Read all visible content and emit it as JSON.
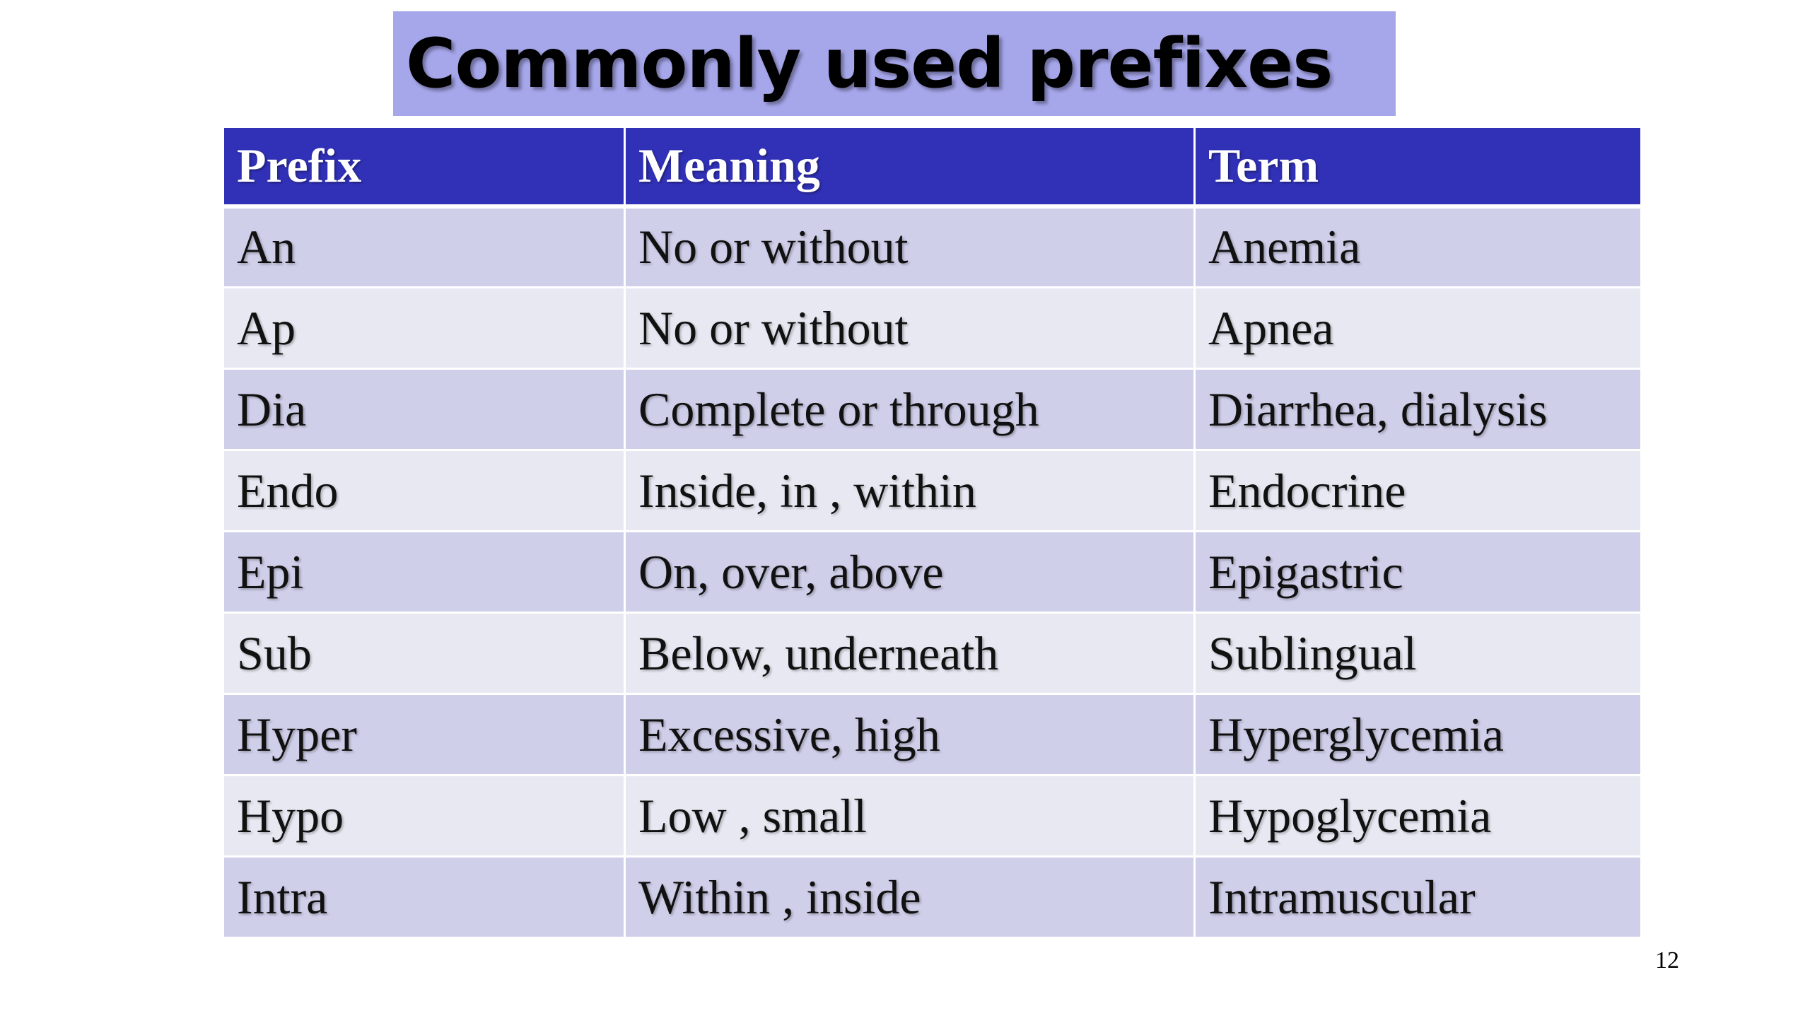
{
  "slide": {
    "title": "Commonly used prefixes",
    "page_number": "12"
  },
  "table": {
    "headers": [
      "Prefix",
      "Meaning",
      "Term"
    ],
    "rows": [
      [
        "An",
        "No or without",
        "Anemia"
      ],
      [
        "Ap",
        "No or without",
        "Apnea"
      ],
      [
        "Dia",
        "Complete or through",
        "Diarrhea, dialysis"
      ],
      [
        "Endo",
        "Inside, in , within",
        "Endocrine"
      ],
      [
        "Epi",
        "On, over, above",
        "Epigastric"
      ],
      [
        "Sub",
        "Below, underneath",
        "Sublingual"
      ],
      [
        "Hyper",
        "Excessive, high",
        "Hyperglycemia"
      ],
      [
        "Hypo",
        "Low , small",
        "Hypoglycemia"
      ],
      [
        "Intra",
        "Within , inside",
        "Intramuscular"
      ]
    ]
  },
  "colors": {
    "title_background": "#a6a6eb",
    "header_background": "#3131b8",
    "row_band_dark": "#cfcfea",
    "row_band_light": "#e8e8f3"
  }
}
